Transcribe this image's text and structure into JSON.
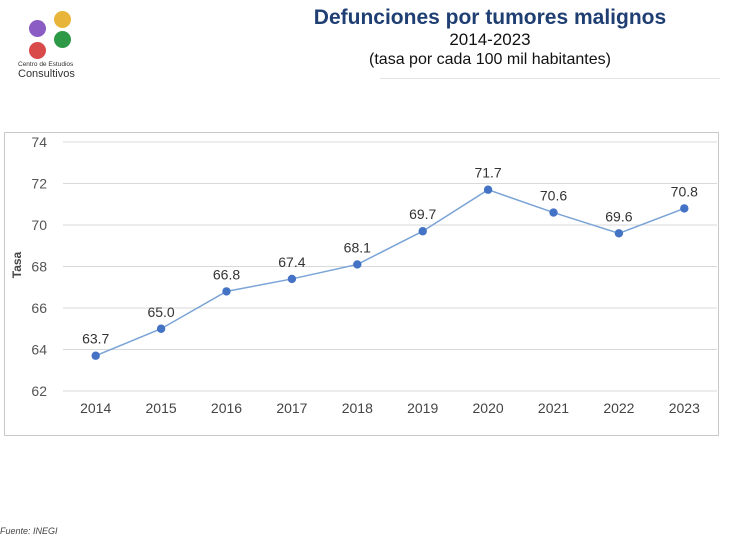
{
  "header": {
    "title": "Defunciones por tumores malignos",
    "period": "2014-2023",
    "unit_note": "(tasa por cada 100 mil habitantes)"
  },
  "logo": {
    "line1": "Centro de Estudios",
    "line2": "Consultivos",
    "colors": [
      "#8a5cc4",
      "#e8b53a",
      "#d94a4a",
      "#2e9a47"
    ]
  },
  "source": "Fuente: INEGI",
  "chart_data": {
    "type": "line",
    "ylabel": "Tasa",
    "xlabel": "",
    "categories": [
      "2014",
      "2015",
      "2016",
      "2017",
      "2018",
      "2019",
      "2020",
      "2021",
      "2022",
      "2023"
    ],
    "values": [
      63.7,
      65.0,
      66.8,
      67.4,
      68.1,
      69.7,
      71.7,
      70.6,
      69.6,
      70.8
    ],
    "data_labels": [
      "63.7",
      "65.0",
      "66.8",
      "67.4",
      "68.1",
      "69.7",
      "71.7",
      "70.6",
      "69.6",
      "70.8"
    ],
    "ylim": [
      62,
      74
    ],
    "yticks": [
      "62",
      "64",
      "66",
      "68",
      "70",
      "72",
      "74"
    ],
    "grid": true,
    "colors": {
      "line": "#7aa3d6",
      "marker": "#4472c4",
      "grid": "#d9d9d9"
    }
  }
}
